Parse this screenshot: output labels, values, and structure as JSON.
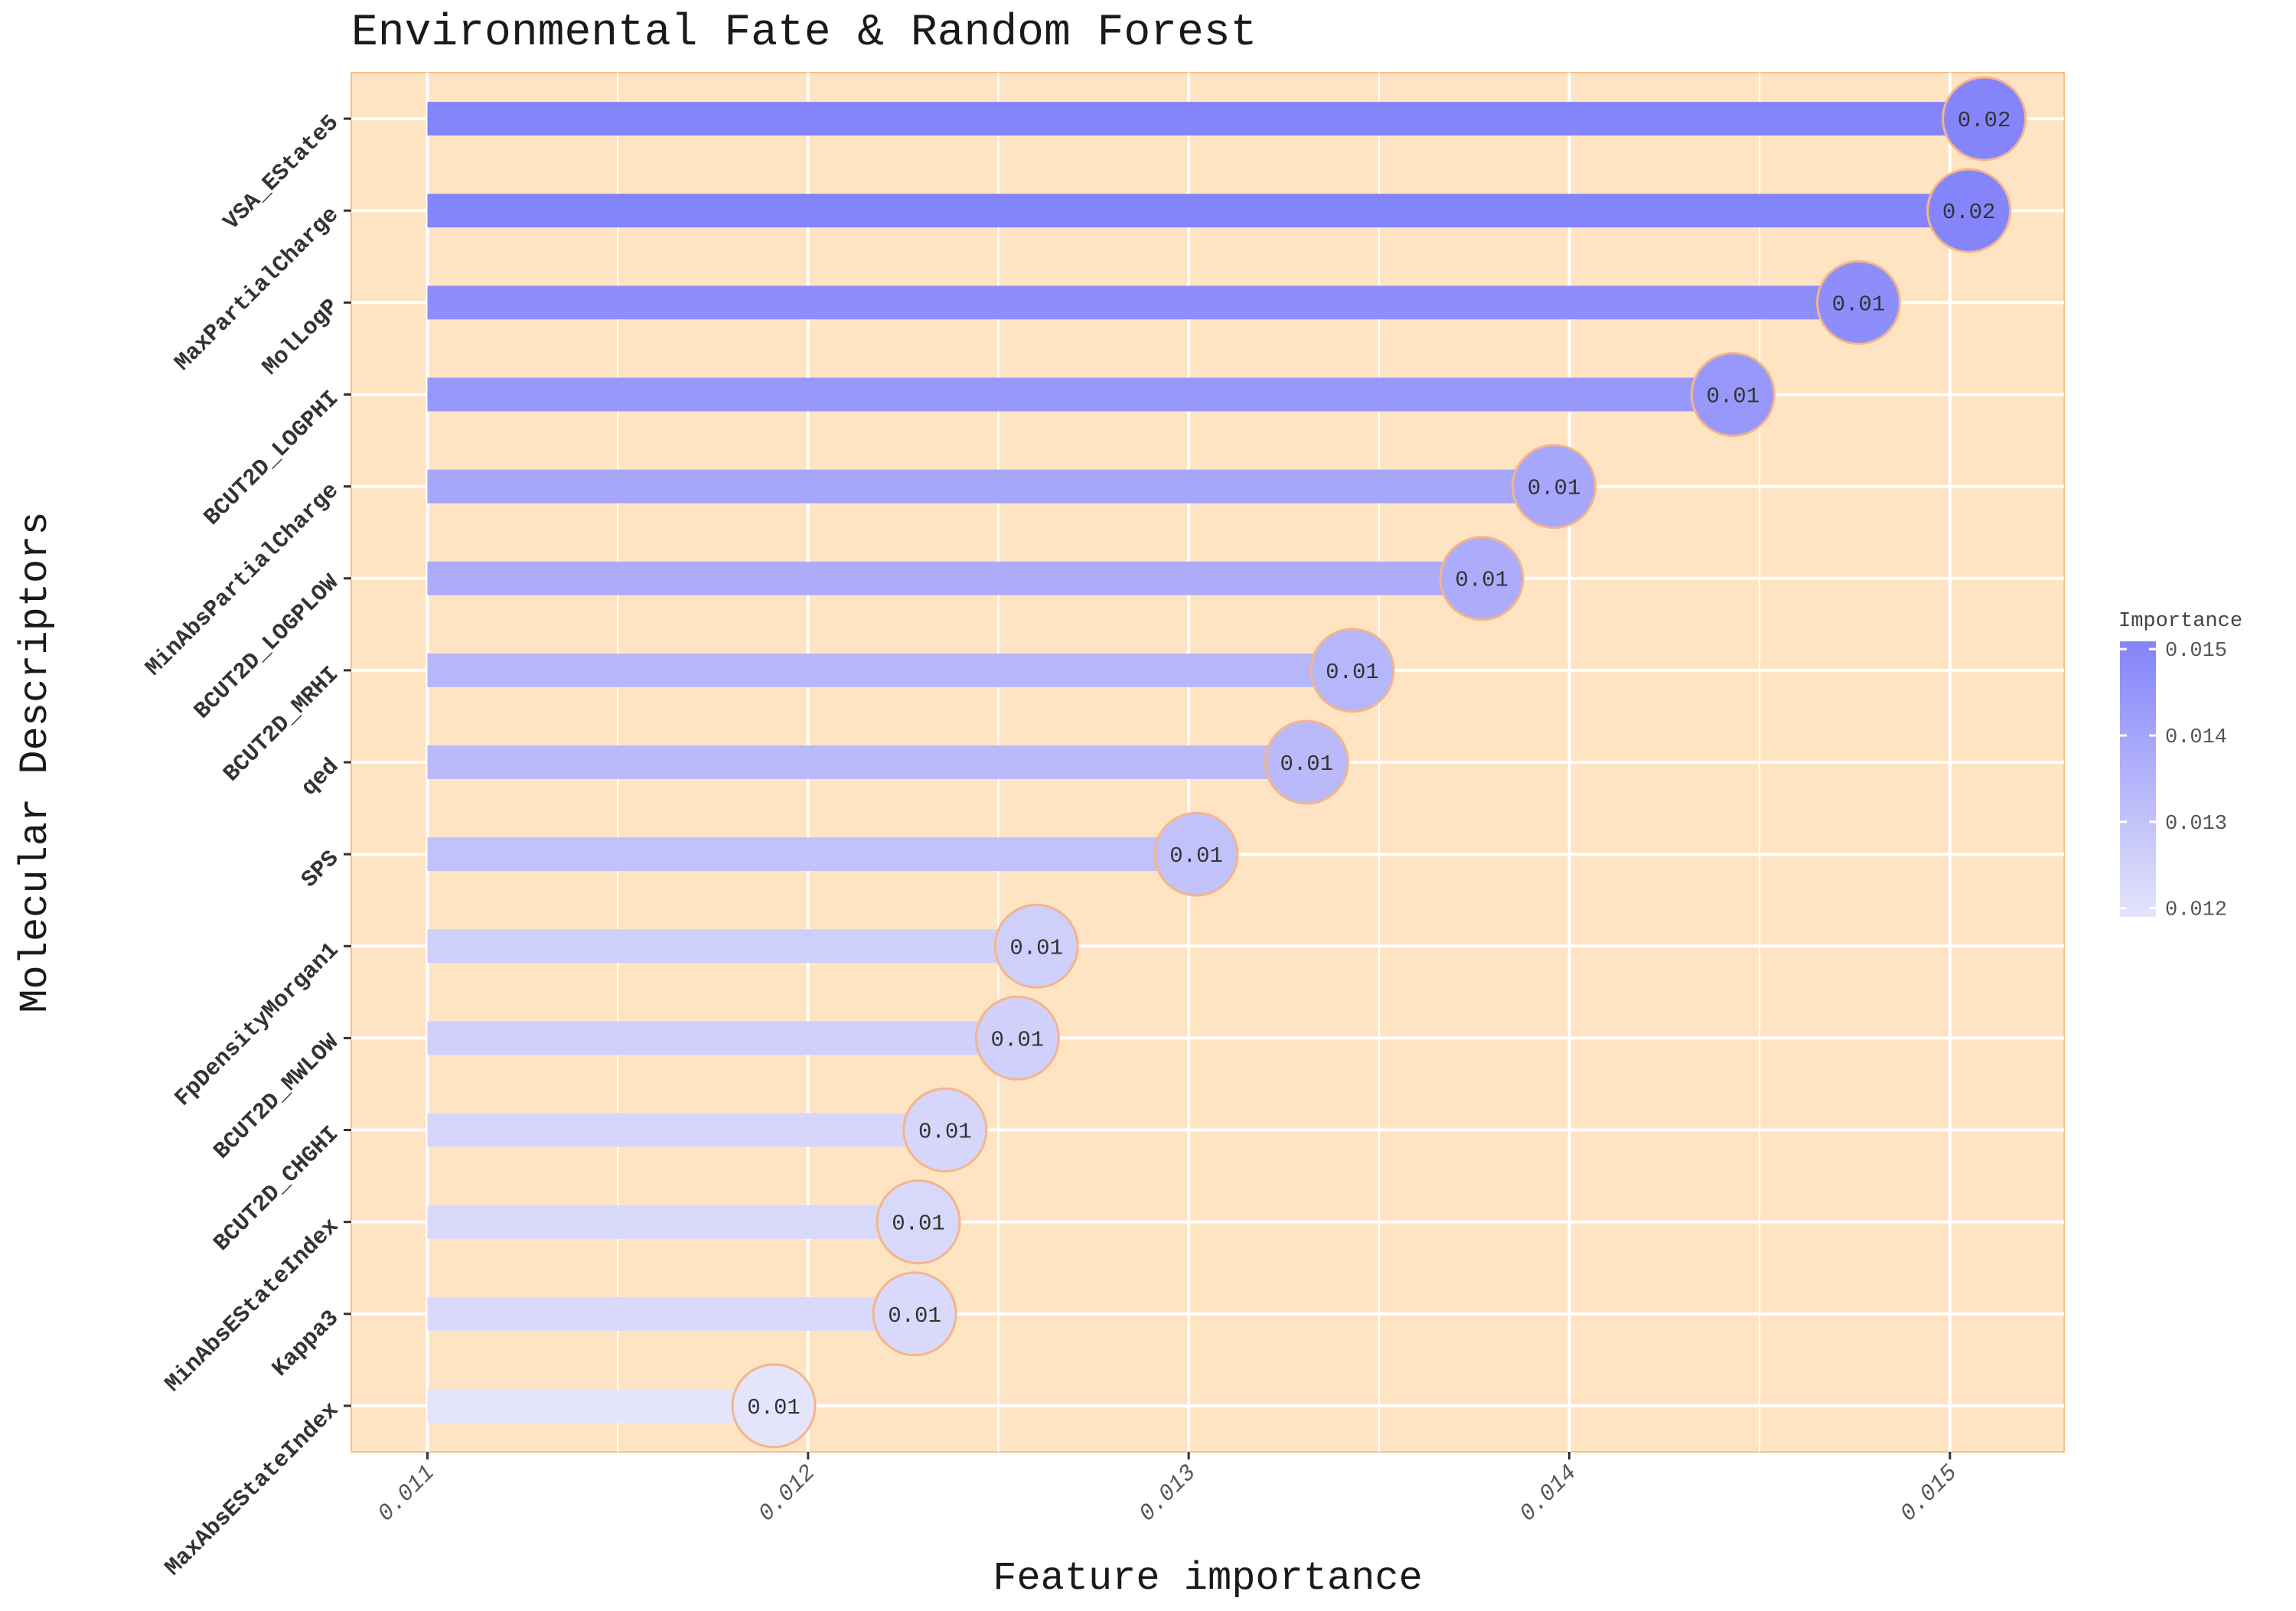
{
  "chart_data": {
    "type": "bar",
    "title": "Environmental Fate & Random Forest",
    "xlabel": "Feature importance",
    "ylabel": "Molecular Descriptors",
    "categories": [
      "VSA_EState5",
      "MaxPartialCharge",
      "MolLogP",
      "BCUT2D_LOGPHI",
      "MinAbsPartialCharge",
      "BCUT2D_LOGPLOW",
      "BCUT2D_MRHI",
      "qed",
      "SPS",
      "FpDensityMorgan1",
      "BCUT2D_MWLOW",
      "BCUT2D_CHGHI",
      "MinAbsEStateIndex",
      "Kappa3",
      "MaxAbsEStateIndex"
    ],
    "values": [
      0.01509,
      0.01505,
      0.01476,
      0.01443,
      0.01396,
      0.01377,
      0.01343,
      0.01331,
      0.01302,
      0.0126,
      0.01255,
      0.01236,
      0.01229,
      0.01228,
      0.01191
    ],
    "data_labels": [
      "0.02",
      "0.02",
      "0.01",
      "0.01",
      "0.01",
      "0.01",
      "0.01",
      "0.01",
      "0.01",
      "0.01",
      "0.01",
      "0.01",
      "0.01",
      "0.01",
      "0.01"
    ],
    "xlim": [
      0.0108,
      0.0153
    ],
    "bar_start": 0.011,
    "x_ticks": [
      "0.011",
      "0.012",
      "0.013",
      "0.014",
      "0.015"
    ],
    "x_tick_values": [
      0.011,
      0.012,
      0.013,
      0.014,
      0.015
    ],
    "grid": true,
    "legend": {
      "title": "Importance",
      "placement": "right",
      "ticks": [
        "0.015",
        "0.014",
        "0.013",
        "0.012"
      ],
      "tick_values": [
        0.015,
        0.014,
        0.013,
        0.012
      ],
      "range": [
        0.0119,
        0.01509
      ]
    },
    "colors": {
      "panel_background": "#ffe4c4",
      "panel_border": "#f5c08a",
      "grid": "#ffffff",
      "gradient_low": "#e4e4fb",
      "gradient_high": "#8484fb",
      "marker_outline": "#f4b58a"
    }
  }
}
